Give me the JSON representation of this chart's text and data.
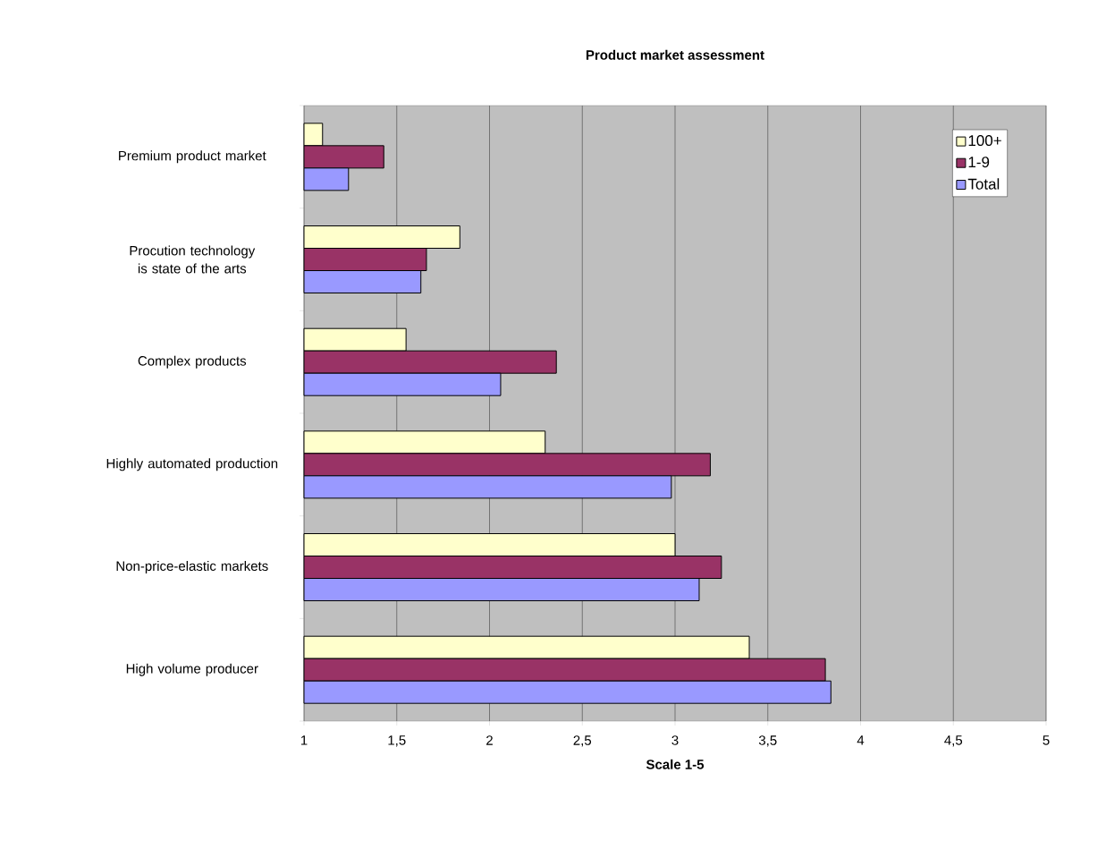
{
  "chart_data": {
    "type": "bar",
    "orientation": "horizontal",
    "title": "Product market assessment",
    "xlabel": "Scale 1-5",
    "categories": [
      "Premium product market",
      "Procution technology is state of the arts",
      "Complex products",
      "Highly automated production",
      "Non-price-elastic markets",
      "High volume producer"
    ],
    "series": [
      {
        "name": "100+",
        "color": "#ffffcc",
        "values": [
          1.1,
          1.84,
          1.55,
          2.3,
          3.0,
          3.4
        ]
      },
      {
        "name": "1-9",
        "color": "#993366",
        "values": [
          1.43,
          1.66,
          2.36,
          3.19,
          3.25,
          3.81
        ]
      },
      {
        "name": "Total",
        "color": "#9999ff",
        "values": [
          1.24,
          1.63,
          2.06,
          2.98,
          3.13,
          3.84
        ]
      }
    ],
    "xlim": [
      1,
      5
    ],
    "xticks": [
      1,
      {
        "value": 1.5,
        "label": "1,5"
      },
      2,
      {
        "value": 2.5,
        "label": "2,5"
      },
      3,
      {
        "value": 3.5,
        "label": "3,5"
      },
      4,
      {
        "value": 4.5,
        "label": "4,5"
      },
      5
    ],
    "grid": "x",
    "legend": "top right"
  }
}
